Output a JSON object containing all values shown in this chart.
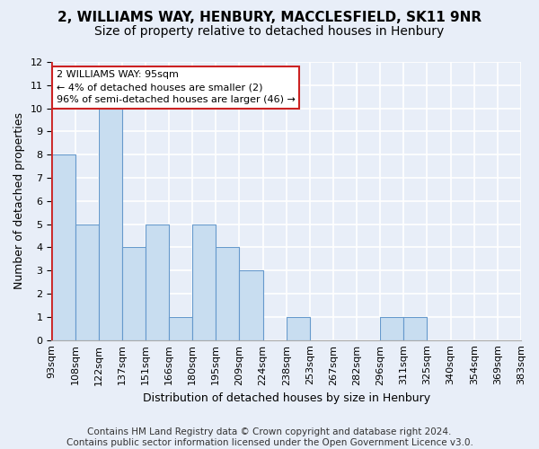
{
  "title1": "2, WILLIAMS WAY, HENBURY, MACCLESFIELD, SK11 9NR",
  "title2": "Size of property relative to detached houses in Henbury",
  "xlabel": "Distribution of detached houses by size in Henbury",
  "ylabel": "Number of detached properties",
  "bin_labels": [
    "93sqm",
    "108sqm",
    "122sqm",
    "137sqm",
    "151sqm",
    "166sqm",
    "180sqm",
    "195sqm",
    "209sqm",
    "224sqm",
    "238sqm",
    "253sqm",
    "267sqm",
    "282sqm",
    "296sqm",
    "311sqm",
    "325sqm",
    "340sqm",
    "354sqm",
    "369sqm",
    "383sqm"
  ],
  "values": [
    8,
    5,
    10,
    4,
    5,
    1,
    5,
    4,
    3,
    0,
    1,
    0,
    0,
    0,
    1,
    1,
    0,
    0,
    0,
    0
  ],
  "bar_color": "#c8ddf0",
  "bar_edge_color": "#6699cc",
  "highlight_color": "#cc2222",
  "ylim": [
    0,
    12
  ],
  "yticks": [
    0,
    1,
    2,
    3,
    4,
    5,
    6,
    7,
    8,
    9,
    10,
    11,
    12
  ],
  "annotation_title": "2 WILLIAMS WAY: 95sqm",
  "annotation_line1": "← 4% of detached houses are smaller (2)",
  "annotation_line2": "96% of semi-detached houses are larger (46) →",
  "footer1": "Contains HM Land Registry data © Crown copyright and database right 2024.",
  "footer2": "Contains public sector information licensed under the Open Government Licence v3.0.",
  "bg_color": "#e8eef8",
  "plot_bg_color": "#e8eef8",
  "grid_color": "#ffffff",
  "title1_fontsize": 11,
  "title2_fontsize": 10,
  "axis_label_fontsize": 9,
  "tick_fontsize": 8,
  "annotation_fontsize": 8,
  "footer_fontsize": 7.5
}
